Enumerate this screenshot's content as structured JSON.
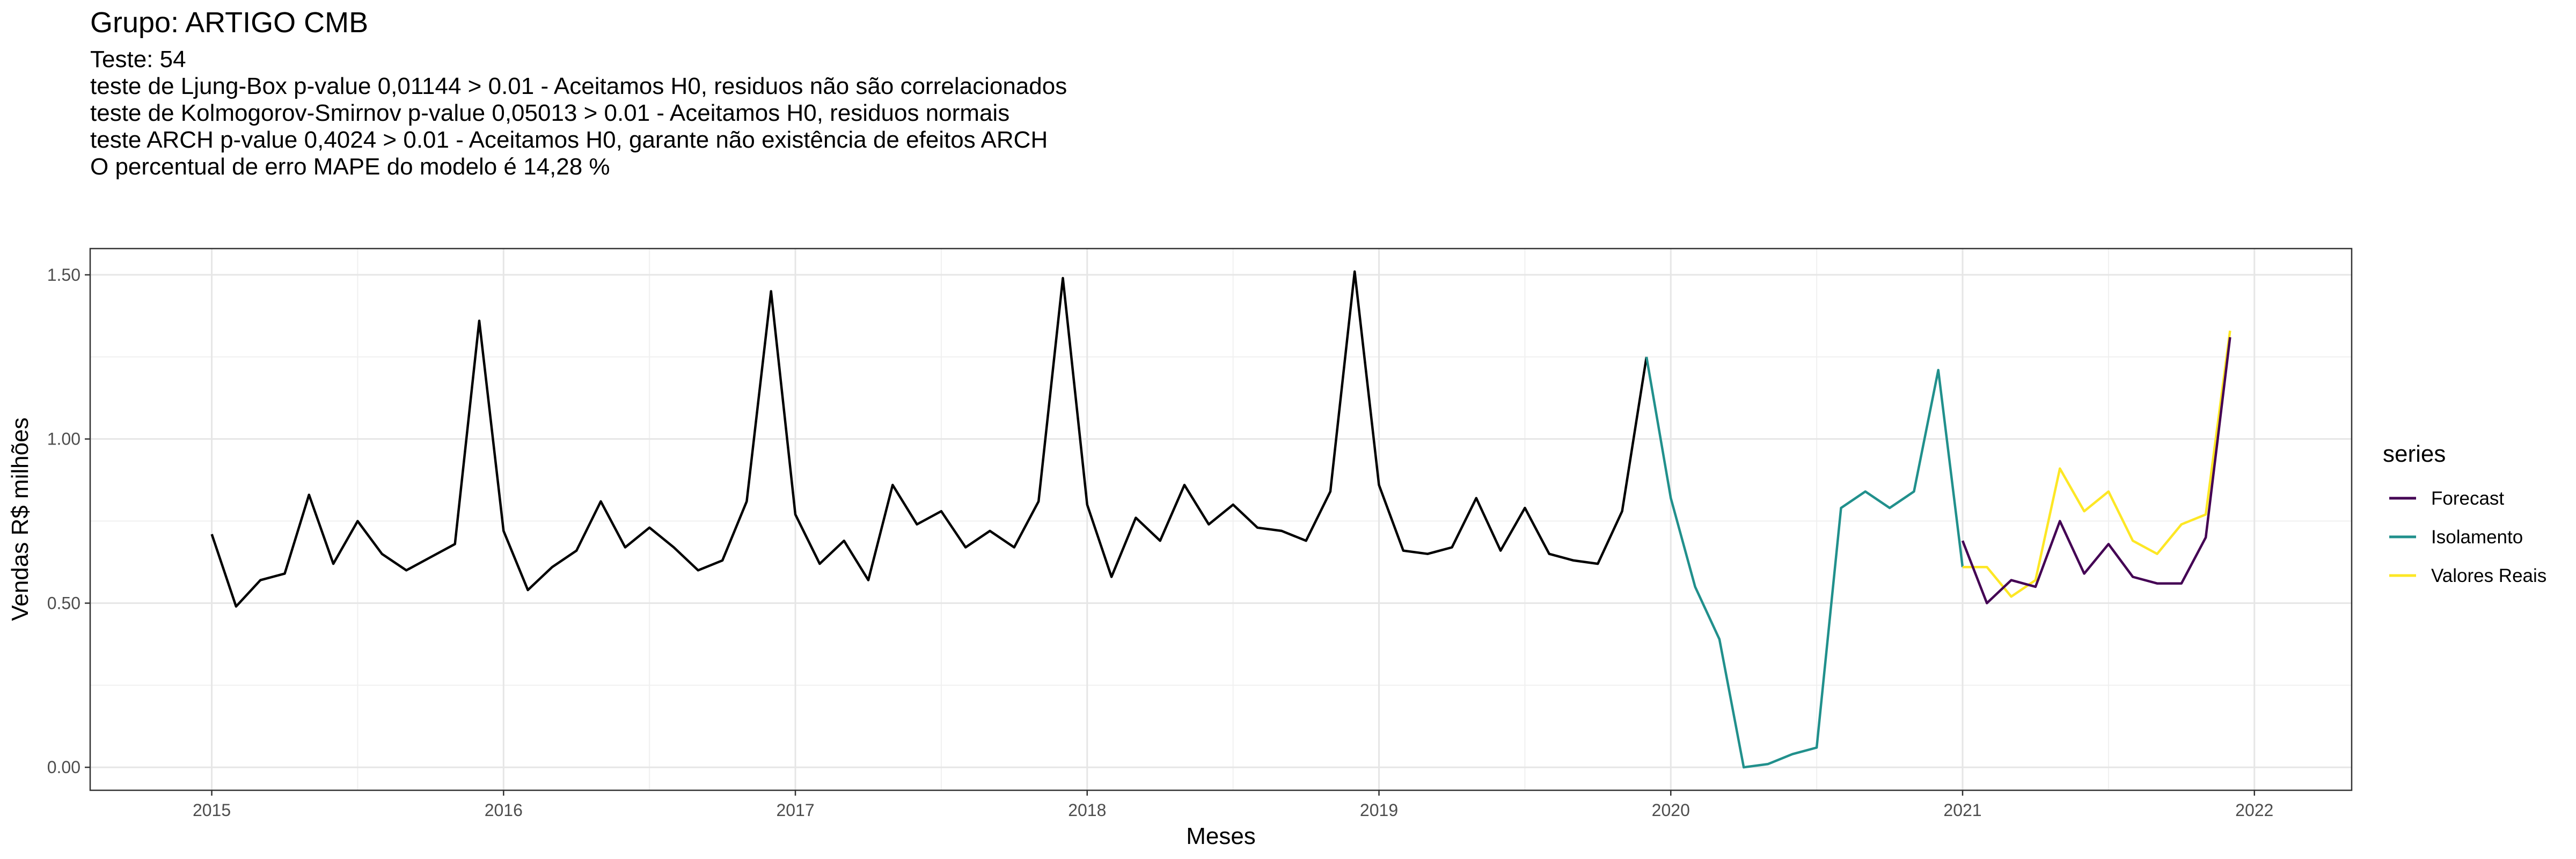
{
  "chart_data": {
    "type": "line",
    "title": "Grupo: ARTIGO CMB",
    "subtitle_lines": [
      "Teste: 54",
      "teste de Ljung-Box p-value 0,01144 > 0.01 - Aceitamos H0, residuos não são correlacionados",
      "teste de Kolmogorov-Smirnov p-value 0,05013 > 0.01 - Aceitamos H0, residuos normais",
      "teste ARCH p-value 0,4024 > 0.01 - Aceitamos H0, garante não existência de efeitos ARCH",
      "O percentual de erro MAPE do modelo é 14,28 %"
    ],
    "xlabel": "Meses",
    "ylabel": "Vendas R$ milhões",
    "x_ticks": [
      "2015",
      "2016",
      "2017",
      "2018",
      "2019",
      "2020",
      "2021",
      "2022"
    ],
    "y_ticks": [
      "0.00",
      "0.50",
      "1.00",
      "1.50"
    ],
    "xlim": [
      "2014-08",
      "2022-05"
    ],
    "ylim": [
      -0.07,
      1.58
    ],
    "grid": true,
    "legend_title": "series",
    "legend_position": "right",
    "series": [
      {
        "name": "",
        "color": "#000000",
        "x": [
          "2015-01",
          "2015-02",
          "2015-03",
          "2015-04",
          "2015-05",
          "2015-06",
          "2015-07",
          "2015-08",
          "2015-09",
          "2015-10",
          "2015-11",
          "2015-12",
          "2016-01",
          "2016-02",
          "2016-03",
          "2016-04",
          "2016-05",
          "2016-06",
          "2016-07",
          "2016-08",
          "2016-09",
          "2016-10",
          "2016-11",
          "2016-12",
          "2017-01",
          "2017-02",
          "2017-03",
          "2017-04",
          "2017-05",
          "2017-06",
          "2017-07",
          "2017-08",
          "2017-09",
          "2017-10",
          "2017-11",
          "2017-12",
          "2018-01",
          "2018-02",
          "2018-03",
          "2018-04",
          "2018-05",
          "2018-06",
          "2018-07",
          "2018-08",
          "2018-09",
          "2018-10",
          "2018-11",
          "2018-12",
          "2019-01",
          "2019-02",
          "2019-03",
          "2019-04",
          "2019-05",
          "2019-06",
          "2019-07",
          "2019-08",
          "2019-09",
          "2019-10",
          "2019-11",
          "2019-12"
        ],
        "y": [
          0.71,
          0.49,
          0.57,
          0.59,
          0.83,
          0.62,
          0.75,
          0.65,
          0.6,
          0.64,
          0.68,
          1.36,
          0.72,
          0.54,
          0.61,
          0.66,
          0.81,
          0.67,
          0.73,
          0.67,
          0.6,
          0.63,
          0.81,
          1.45,
          0.77,
          0.62,
          0.69,
          0.57,
          0.86,
          0.74,
          0.78,
          0.67,
          0.72,
          0.67,
          0.81,
          1.49,
          0.8,
          0.58,
          0.76,
          0.69,
          0.86,
          0.74,
          0.8,
          0.73,
          0.72,
          0.69,
          0.84,
          1.51,
          0.86,
          0.66,
          0.65,
          0.67,
          0.82,
          0.66,
          0.79,
          0.65,
          0.63,
          0.62,
          0.78,
          1.25
        ]
      },
      {
        "name": "Isolamento",
        "color": "#21908C",
        "x": [
          "2019-12",
          "2020-01",
          "2020-02",
          "2020-03",
          "2020-04",
          "2020-05",
          "2020-06",
          "2020-07",
          "2020-08",
          "2020-09",
          "2020-10",
          "2020-11",
          "2020-12",
          "2021-01"
        ],
        "y": [
          1.25,
          0.82,
          0.55,
          0.39,
          0.0,
          0.01,
          0.04,
          0.06,
          0.79,
          0.84,
          0.79,
          0.84,
          1.21,
          0.61
        ]
      },
      {
        "name": "Forecast",
        "color": "#440154",
        "x": [
          "2021-01",
          "2021-02",
          "2021-03",
          "2021-04",
          "2021-05",
          "2021-06",
          "2021-07",
          "2021-08",
          "2021-09",
          "2021-10",
          "2021-11",
          "2021-12"
        ],
        "y": [
          0.69,
          0.5,
          0.57,
          0.55,
          0.75,
          0.59,
          0.68,
          0.58,
          0.56,
          0.56,
          0.7,
          1.31
        ]
      },
      {
        "name": "Valores Reais",
        "color": "#FDE725",
        "x": [
          "2021-01",
          "2021-02",
          "2021-03",
          "2021-04",
          "2021-05",
          "2021-06",
          "2021-07",
          "2021-08",
          "2021-09",
          "2021-10",
          "2021-11",
          "2021-12"
        ],
        "y": [
          0.61,
          0.61,
          0.52,
          0.57,
          0.91,
          0.78,
          0.84,
          0.69,
          0.65,
          0.74,
          0.77,
          1.33
        ]
      }
    ],
    "legend_entries": [
      "Forecast",
      "Isolamento",
      "Valores Reais"
    ]
  }
}
